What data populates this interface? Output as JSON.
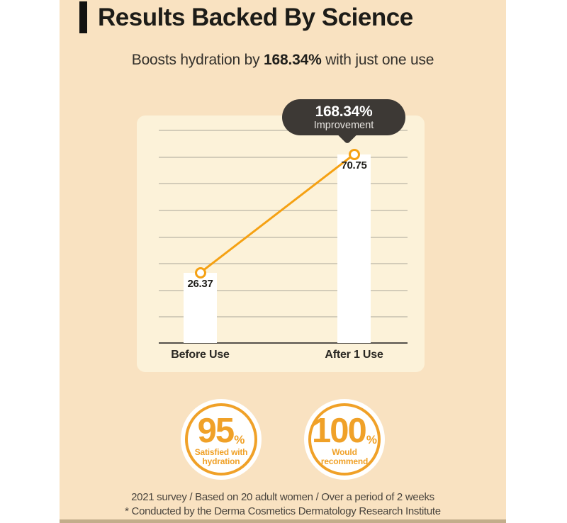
{
  "colors": {
    "canvas_bg": "#F9E2C1",
    "panel_bg": "#FCF2D9",
    "accent_orange": "#F5A113",
    "badge_orange": "#F0A128",
    "tooltip_bg": "#3D3935",
    "title_text": "#1D1C18",
    "body_text": "#33302B",
    "footer_text": "#49443D",
    "gridline": "#C6BFAE",
    "axis": "#54504A",
    "bar_fill": "#FFFFFF",
    "bottom_strip": "#C2AD8B"
  },
  "header": {
    "title": "Results Backed By Science",
    "subtitle_prefix": "Boosts hydration by ",
    "subtitle_highlight": "168.34%",
    "subtitle_suffix": " with just one use"
  },
  "chart_data": {
    "type": "bar",
    "title": "",
    "xlabel": "",
    "ylabel": "",
    "categories": [
      "Before Use",
      "After 1 Use"
    ],
    "values": [
      26.37,
      70.75
    ],
    "value_labels": [
      "26.37",
      "70.75"
    ],
    "annotation": {
      "value": "168.34%",
      "label": "Improvement",
      "attached_to": "After 1 Use"
    },
    "overlay": "orange line with circular markers connecting the two bar tops",
    "ylim": [
      0,
      80
    ],
    "gridlines": 8,
    "grid": true,
    "legend": false
  },
  "badges": [
    {
      "value": "95",
      "unit": "%",
      "label_lines": [
        "Satisfied with",
        "hydration"
      ]
    },
    {
      "value": "100",
      "unit": "%",
      "label_lines": [
        "Would",
        "recommend"
      ]
    }
  ],
  "footer": {
    "line1": "2021 survey / Based on 20 adult women / Over a period of 2 weeks",
    "line2": "* Conducted by the Derma Cosmetics Dermatology Research Institute"
  }
}
